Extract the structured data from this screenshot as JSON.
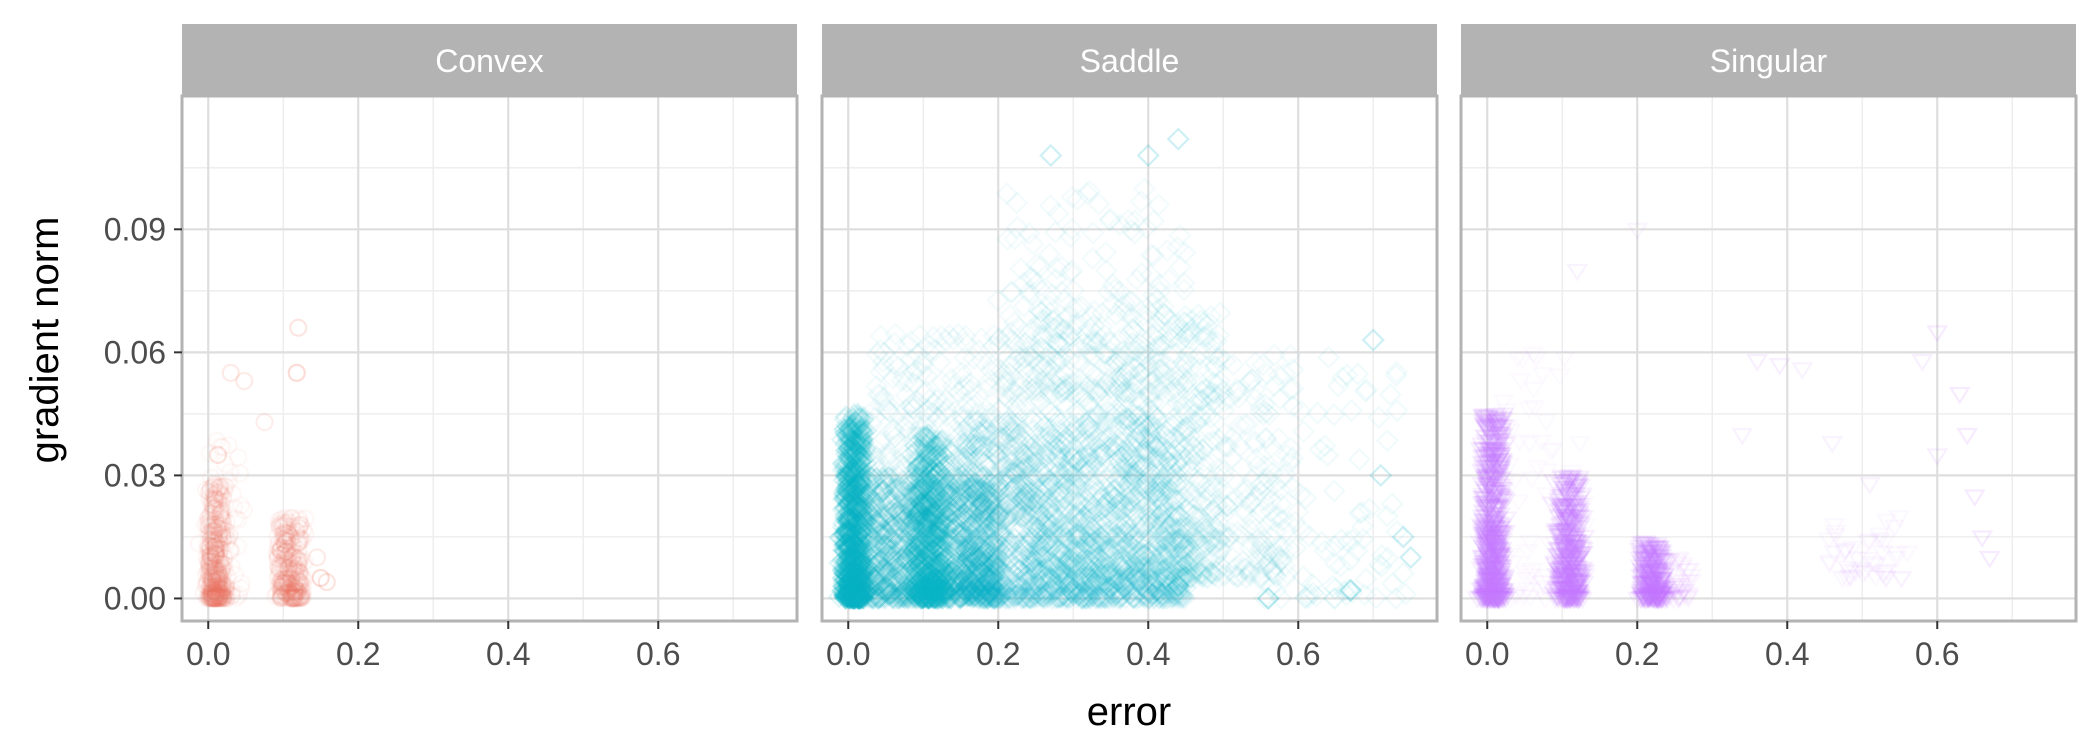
{
  "chart_data": {
    "type": "scatter",
    "xlabel": "error",
    "ylabel": "gradient norm",
    "xlim": [
      -0.035,
      0.785
    ],
    "ylim": [
      -0.0055,
      0.1225
    ],
    "x_ticks": [
      0.0,
      0.2,
      0.4,
      0.6
    ],
    "x_tick_labels": [
      "0.0",
      "0.2",
      "0.4",
      "0.6"
    ],
    "x_minor": [
      0.1,
      0.3,
      0.5,
      0.7
    ],
    "y_ticks": [
      0.0,
      0.03,
      0.06,
      0.09
    ],
    "y_tick_labels": [
      "0.00",
      "0.03",
      "0.06",
      "0.09"
    ],
    "y_minor": [
      0.015,
      0.045,
      0.075,
      0.105
    ],
    "grid": true,
    "legend": "none",
    "colors": {
      "Convex": "#f0775f",
      "Saddle": "#0bb5c7",
      "Singular": "#c77cff",
      "strip_bg": "#b3b3b3",
      "strip_text": "#ffffff",
      "panel_border": "#b3b3b3",
      "grid_major": "#dedede",
      "grid_minor": "#eeeeee",
      "tick_text": "#4d4d4d"
    },
    "facets": [
      {
        "name": "Convex",
        "marker": "circle",
        "clusters": [
          {
            "x": [
              0.0,
              0.02
            ],
            "y": [
              0.0,
              0.028
            ],
            "n": 420,
            "alpha": 0.06
          },
          {
            "x": [
              0.095,
              0.125
            ],
            "y": [
              0.0,
              0.02
            ],
            "n": 320,
            "alpha": 0.06
          },
          {
            "x": [
              0.0,
              0.045
            ],
            "y": [
              0.0,
              0.04
            ],
            "n": 60,
            "alpha": 0.05
          }
        ],
        "points": [
          {
            "x": 0.03,
            "y": 0.055,
            "alpha": 0.15
          },
          {
            "x": 0.048,
            "y": 0.053,
            "alpha": 0.15
          },
          {
            "x": 0.075,
            "y": 0.043,
            "alpha": 0.12
          },
          {
            "x": 0.12,
            "y": 0.066,
            "alpha": 0.18
          },
          {
            "x": 0.118,
            "y": 0.055,
            "alpha": 0.25
          },
          {
            "x": 0.013,
            "y": 0.035,
            "alpha": 0.2
          },
          {
            "x": 0.15,
            "y": 0.005,
            "alpha": 0.25
          },
          {
            "x": 0.158,
            "y": 0.004,
            "alpha": 0.2
          },
          {
            "x": 0.145,
            "y": 0.01,
            "alpha": 0.15
          }
        ]
      },
      {
        "name": "Saddle",
        "marker": "diamond",
        "clusters": [
          {
            "x": [
              -0.005,
              0.02
            ],
            "y": [
              0.0,
              0.045
            ],
            "n": 900,
            "alpha": 0.12
          },
          {
            "x": [
              0.0,
              0.2
            ],
            "y": [
              0.0,
              0.03
            ],
            "n": 1200,
            "alpha": 0.1
          },
          {
            "x": [
              0.09,
              0.13
            ],
            "y": [
              0.0,
              0.04
            ],
            "n": 500,
            "alpha": 0.12
          },
          {
            "x": [
              0.15,
              0.45
            ],
            "y": [
              0.0,
              0.045
            ],
            "n": 1400,
            "alpha": 0.08
          },
          {
            "x": [
              0.25,
              0.5
            ],
            "y": [
              0.005,
              0.07
            ],
            "n": 700,
            "alpha": 0.06
          },
          {
            "x": [
              0.02,
              0.25
            ],
            "y": [
              0.02,
              0.065
            ],
            "n": 400,
            "alpha": 0.05
          },
          {
            "x": [
              0.2,
              0.45
            ],
            "y": [
              0.05,
              0.1
            ],
            "n": 250,
            "alpha": 0.05
          },
          {
            "x": [
              0.45,
              0.6
            ],
            "y": [
              0.005,
              0.06
            ],
            "n": 220,
            "alpha": 0.05
          },
          {
            "x": [
              0.55,
              0.74
            ],
            "y": [
              0.0,
              0.06
            ],
            "n": 90,
            "alpha": 0.06
          }
        ],
        "points": [
          {
            "x": 0.44,
            "y": 0.112,
            "alpha": 0.2
          },
          {
            "x": 0.4,
            "y": 0.108,
            "alpha": 0.2
          },
          {
            "x": 0.27,
            "y": 0.108,
            "alpha": 0.2
          },
          {
            "x": 0.56,
            "y": 0.0,
            "alpha": 0.3
          },
          {
            "x": 0.44,
            "y": 0.003,
            "alpha": 0.35
          },
          {
            "x": 0.67,
            "y": 0.002,
            "alpha": 0.25
          },
          {
            "x": 0.75,
            "y": 0.01,
            "alpha": 0.2
          },
          {
            "x": 0.74,
            "y": 0.015,
            "alpha": 0.2
          },
          {
            "x": 0.71,
            "y": 0.03,
            "alpha": 0.2
          },
          {
            "x": 0.7,
            "y": 0.063,
            "alpha": 0.2
          }
        ]
      },
      {
        "name": "Singular",
        "marker": "triangle-down",
        "clusters": [
          {
            "x": [
              -0.005,
              0.02
            ],
            "y": [
              0.0,
              0.045
            ],
            "n": 700,
            "alpha": 0.12
          },
          {
            "x": [
              0.095,
              0.125
            ],
            "y": [
              0.0,
              0.03
            ],
            "n": 450,
            "alpha": 0.12
          },
          {
            "x": [
              0.205,
              0.235
            ],
            "y": [
              0.0,
              0.014
            ],
            "n": 300,
            "alpha": 0.12
          },
          {
            "x": [
              0.02,
              0.13
            ],
            "y": [
              0.0,
              0.06
            ],
            "n": 80,
            "alpha": 0.04
          },
          {
            "x": [
              0.22,
              0.27
            ],
            "y": [
              0.0,
              0.01
            ],
            "n": 60,
            "alpha": 0.06
          },
          {
            "x": [
              0.45,
              0.56
            ],
            "y": [
              0.005,
              0.02
            ],
            "n": 45,
            "alpha": 0.05
          }
        ],
        "points": [
          {
            "x": 0.2,
            "y": 0.09,
            "alpha": 0.08
          },
          {
            "x": 0.12,
            "y": 0.08,
            "alpha": 0.1
          },
          {
            "x": 0.36,
            "y": 0.058,
            "alpha": 0.12
          },
          {
            "x": 0.39,
            "y": 0.057,
            "alpha": 0.12
          },
          {
            "x": 0.42,
            "y": 0.056,
            "alpha": 0.1
          },
          {
            "x": 0.46,
            "y": 0.038,
            "alpha": 0.1
          },
          {
            "x": 0.58,
            "y": 0.058,
            "alpha": 0.12
          },
          {
            "x": 0.6,
            "y": 0.065,
            "alpha": 0.15
          },
          {
            "x": 0.63,
            "y": 0.05,
            "alpha": 0.15
          },
          {
            "x": 0.64,
            "y": 0.04,
            "alpha": 0.15
          },
          {
            "x": 0.65,
            "y": 0.025,
            "alpha": 0.15
          },
          {
            "x": 0.66,
            "y": 0.015,
            "alpha": 0.15
          },
          {
            "x": 0.67,
            "y": 0.01,
            "alpha": 0.15
          },
          {
            "x": 0.6,
            "y": 0.035,
            "alpha": 0.12
          },
          {
            "x": 0.34,
            "y": 0.04,
            "alpha": 0.1
          },
          {
            "x": 0.51,
            "y": 0.028,
            "alpha": 0.1
          }
        ]
      }
    ]
  }
}
